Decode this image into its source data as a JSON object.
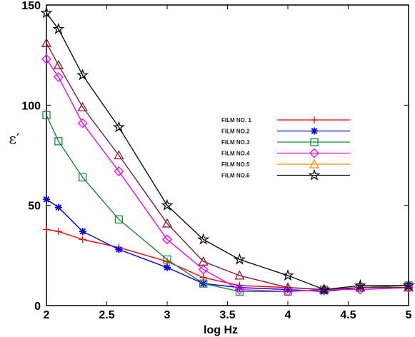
{
  "chart_data": {
    "type": "line",
    "title": "",
    "xlabel": "log Hz",
    "ylabel": "ε′",
    "xlim": [
      2,
      5
    ],
    "ylim": [
      0,
      150
    ],
    "xticks": [
      "2",
      "2.5",
      "3",
      "3.5",
      "4",
      "4.5",
      "5"
    ],
    "yticks": [
      "0",
      "50",
      "100",
      "150"
    ],
    "grid": false,
    "legend_position": "center-right",
    "series": [
      {
        "name": "FILM NO. 1",
        "color": "#ff0000",
        "marker": "plus",
        "x": [
          2,
          2.1,
          2.3,
          2.6,
          3,
          3.3,
          3.6,
          4,
          4.3,
          4.6,
          5
        ],
        "y": [
          38,
          37,
          33,
          29,
          22,
          14,
          10,
          9,
          8,
          9,
          10
        ]
      },
      {
        "name": "FILM NO.2",
        "color": "#0000ff",
        "marker": "asterisk",
        "x": [
          2,
          2.1,
          2.3,
          2.6,
          3,
          3.3,
          3.6,
          4,
          4.3,
          4.6,
          5
        ],
        "y": [
          53,
          49,
          37,
          28,
          19,
          11,
          9,
          8,
          7,
          9,
          10
        ]
      },
      {
        "name": "FILM NO.3",
        "color": "#1a8a3a",
        "marker": "square",
        "x": [
          2,
          2.1,
          2.3,
          2.6,
          3,
          3.3,
          3.6,
          4,
          4.3,
          4.6,
          5
        ],
        "y": [
          95,
          82,
          64,
          43,
          23,
          11,
          7,
          7,
          8,
          9,
          10
        ]
      },
      {
        "name": "FILM NO.4",
        "color": "#ff00ff",
        "marker": "diamond",
        "x": [
          2,
          2.1,
          2.3,
          2.6,
          3,
          3.3,
          3.6,
          4,
          4.3,
          4.6,
          5
        ],
        "y": [
          123,
          114,
          91,
          67,
          33,
          18,
          8,
          7,
          8,
          8,
          9
        ]
      },
      {
        "name": "FILM NO.5",
        "color": "#8b1a3a",
        "legend_color": "#ff8c00",
        "marker": "triangle",
        "x": [
          2,
          2.1,
          2.3,
          2.6,
          3,
          3.3,
          3.6,
          4,
          4.3,
          4.6,
          5
        ],
        "y": [
          131,
          120,
          99,
          75,
          41,
          22,
          15,
          9,
          8,
          9,
          9
        ]
      },
      {
        "name": "FILM NO.6",
        "color": "#111111",
        "marker": "star",
        "x": [
          2,
          2.1,
          2.3,
          2.6,
          3,
          3.3,
          3.6,
          4,
          4.3,
          4.6,
          5
        ],
        "y": [
          146,
          138,
          115,
          89,
          50,
          33,
          23,
          15,
          8,
          10,
          10
        ]
      }
    ]
  }
}
